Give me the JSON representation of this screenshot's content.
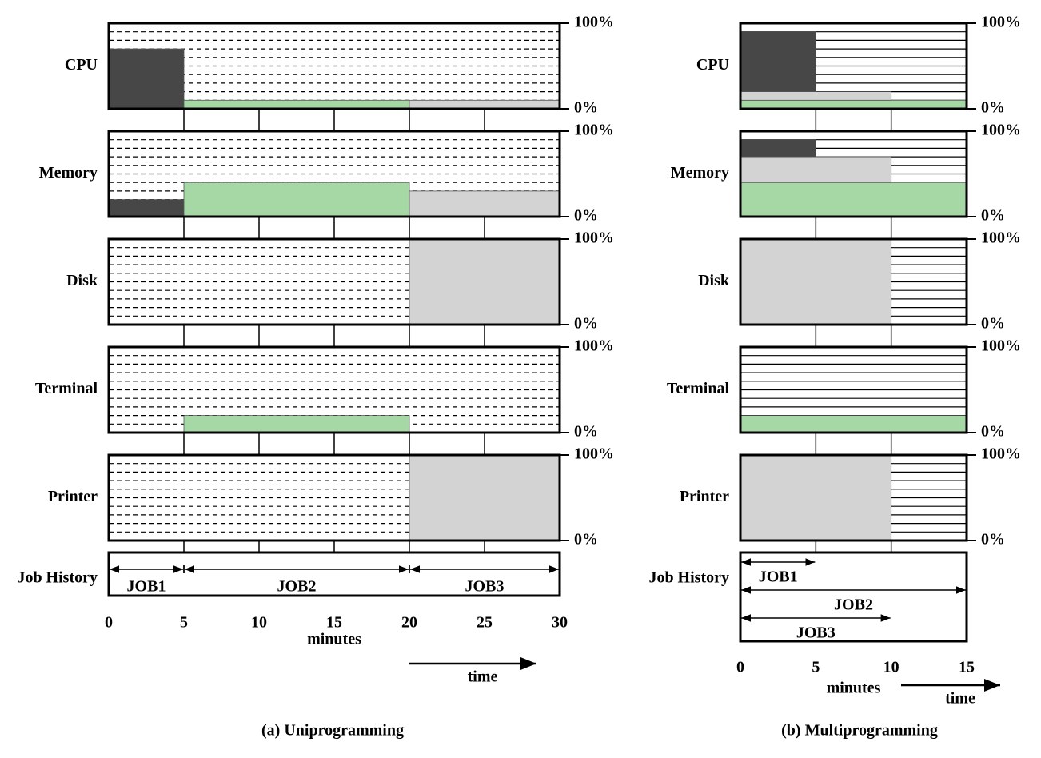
{
  "yticks": [
    {
      "value": 0,
      "label": "0%"
    },
    {
      "value": 100,
      "label": "100%"
    }
  ],
  "ylim": [
    0,
    100
  ],
  "panels": [
    {
      "caption": "(a) Uniprogramming",
      "xlabel": "minutes",
      "time_label": "time",
      "job_history_label": "Job History",
      "hatch": "dashed",
      "xlim": [
        0,
        30
      ],
      "xticks": [
        0,
        5,
        10,
        15,
        20,
        25,
        30
      ],
      "resources": [
        {
          "name": "CPU",
          "segments": [
            {
              "start": 0,
              "end": 5,
              "value": 70,
              "color": "#474747"
            },
            {
              "start": 5,
              "end": 20,
              "value": 10,
              "color": "#a6d8a6"
            },
            {
              "start": 20,
              "end": 30,
              "value": 10,
              "color": "#d3d3d3"
            }
          ]
        },
        {
          "name": "Memory",
          "segments": [
            {
              "start": 0,
              "end": 5,
              "value": 20,
              "color": "#474747"
            },
            {
              "start": 5,
              "end": 20,
              "value": 40,
              "color": "#a6d8a6"
            },
            {
              "start": 20,
              "end": 30,
              "value": 30,
              "color": "#d3d3d3"
            }
          ]
        },
        {
          "name": "Disk",
          "segments": [
            {
              "start": 20,
              "end": 30,
              "value": 100,
              "color": "#d3d3d3"
            }
          ]
        },
        {
          "name": "Terminal",
          "segments": [
            {
              "start": 5,
              "end": 20,
              "value": 20,
              "color": "#a6d8a6"
            }
          ]
        },
        {
          "name": "Printer",
          "segments": [
            {
              "start": 20,
              "end": 30,
              "value": 100,
              "color": "#d3d3d3"
            }
          ]
        }
      ],
      "jobs": [
        {
          "name": "JOB1",
          "start": 0,
          "end": 5
        },
        {
          "name": "JOB2",
          "start": 5,
          "end": 20
        },
        {
          "name": "JOB3",
          "start": 20,
          "end": 30
        }
      ]
    },
    {
      "caption": "(b) Multiprogramming",
      "xlabel": "minutes",
      "time_label": "time",
      "job_history_label": "Job History",
      "hatch": "solid",
      "xlim": [
        0,
        15
      ],
      "xticks": [
        0,
        5,
        10,
        15
      ],
      "resources": [
        {
          "name": "CPU",
          "segments": [
            {
              "start": 0,
              "end": 15,
              "value": 10,
              "color": "#a6d8a6"
            },
            {
              "start": 0,
              "end": 10,
              "value": 10,
              "color": "#d3d3d3"
            },
            {
              "start": 0,
              "end": 5,
              "value": 70,
              "color": "#474747"
            }
          ]
        },
        {
          "name": "Memory",
          "segments": [
            {
              "start": 0,
              "end": 15,
              "value": 40,
              "color": "#a6d8a6"
            },
            {
              "start": 0,
              "end": 10,
              "value": 30,
              "color": "#d3d3d3"
            },
            {
              "start": 0,
              "end": 5,
              "value": 20,
              "color": "#474747"
            }
          ]
        },
        {
          "name": "Disk",
          "segments": [
            {
              "start": 0,
              "end": 10,
              "value": 100,
              "color": "#d3d3d3"
            }
          ]
        },
        {
          "name": "Terminal",
          "segments": [
            {
              "start": 0,
              "end": 15,
              "value": 20,
              "color": "#a6d8a6"
            }
          ]
        },
        {
          "name": "Printer",
          "segments": [
            {
              "start": 0,
              "end": 10,
              "value": 100,
              "color": "#d3d3d3"
            }
          ]
        }
      ],
      "jobs": [
        {
          "name": "JOB1",
          "start": 0,
          "end": 5
        },
        {
          "name": "JOB2",
          "start": 0,
          "end": 15
        },
        {
          "name": "JOB3",
          "start": 0,
          "end": 10
        }
      ]
    }
  ]
}
